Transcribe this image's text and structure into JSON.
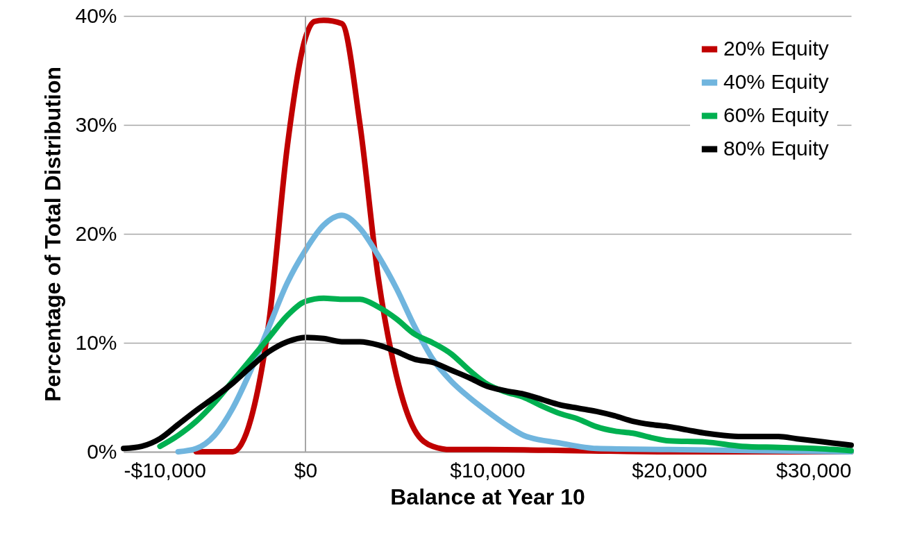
{
  "chart_data": {
    "type": "line",
    "xlabel": "Balance at Year 10",
    "ylabel": "Percentage of Total Distribution",
    "xlim": [
      -10000,
      30000
    ],
    "ylim": [
      0,
      40
    ],
    "xticks": [
      {
        "value": -10000,
        "label": "-$10,000"
      },
      {
        "value": 0,
        "label": "$0"
      },
      {
        "value": 10000,
        "label": "$10,000"
      },
      {
        "value": 20000,
        "label": "$20,000"
      },
      {
        "value": 30000,
        "label": "$30,000"
      }
    ],
    "yticks": [
      {
        "value": 0,
        "label": "0%"
      },
      {
        "value": 10,
        "label": "10%"
      },
      {
        "value": 20,
        "label": "20%"
      },
      {
        "value": 30,
        "label": "30%"
      },
      {
        "value": 40,
        "label": "40%"
      }
    ],
    "grid": "y",
    "legend": "top right",
    "marker": "none",
    "line_style": "solid",
    "ref_lines": [
      {
        "axis": "x",
        "value": 0,
        "color": "#a6a6a6"
      }
    ],
    "series": [
      {
        "name": "20% Equity",
        "color": "#c00000",
        "x": [
          -6000,
          -4000,
          -3000,
          -2000,
          -1000,
          0,
          500,
          1000,
          2000,
          3000,
          4000,
          5000,
          6000,
          7000,
          8000,
          10000,
          15000,
          20000,
          30000
        ],
        "values": [
          0,
          0,
          3,
          12,
          28,
          38,
          39.5,
          39.6,
          39.3,
          30,
          16,
          7,
          2,
          0.5,
          0.2,
          0.2,
          0.1,
          0,
          0
        ]
      },
      {
        "name": "40% Equity",
        "color": "#70b5de",
        "x": [
          -7000,
          -6000,
          -5000,
          -4000,
          -3000,
          -2000,
          -1000,
          0,
          1000,
          2000,
          3000,
          4000,
          5000,
          6000,
          7000,
          8000,
          9000,
          10000,
          11000,
          12000,
          14000,
          16000,
          20000,
          25000,
          30000
        ],
        "values": [
          0,
          0.3,
          1.5,
          4,
          7.5,
          11.5,
          15.5,
          18.5,
          20.8,
          21.7,
          20.5,
          18,
          15,
          11.5,
          8.5,
          6.5,
          5,
          3.7,
          2.5,
          1.5,
          0.8,
          0.3,
          0.2,
          0.1,
          0
        ]
      },
      {
        "name": "60% Equity",
        "color": "#00b050",
        "x": [
          -8000,
          -7000,
          -6000,
          -5000,
          -4000,
          -3000,
          -2000,
          -1000,
          0,
          1000,
          2000,
          3000,
          4000,
          5000,
          6000,
          7000,
          8000,
          9000,
          10000,
          11000,
          12000,
          13000,
          14000,
          15000,
          16000,
          17000,
          18000,
          19000,
          20000,
          22000,
          24000,
          26000,
          28000,
          30000
        ],
        "values": [
          0.5,
          1.5,
          2.8,
          4.5,
          6.5,
          8.5,
          10.5,
          12.5,
          13.8,
          14.1,
          14,
          14,
          13.3,
          12.2,
          10.8,
          10,
          9,
          7.5,
          6.2,
          5.5,
          5,
          4.2,
          3.5,
          3,
          2.3,
          1.9,
          1.7,
          1.3,
          1,
          0.9,
          0.5,
          0.4,
          0.3,
          0.1
        ]
      },
      {
        "name": "80% Equity",
        "color": "#000000",
        "x": [
          -10000,
          -9000,
          -8000,
          -7000,
          -6000,
          -5000,
          -4000,
          -3000,
          -2000,
          -1000,
          0,
          1000,
          2000,
          3000,
          4000,
          5000,
          6000,
          7000,
          8000,
          9000,
          10000,
          11000,
          12000,
          13000,
          14000,
          15000,
          16000,
          17000,
          18000,
          19000,
          20000,
          21000,
          22000,
          23000,
          24000,
          25000,
          26000,
          27000,
          28000,
          29000,
          30000
        ],
        "values": [
          0.3,
          0.5,
          1.2,
          2.5,
          3.8,
          5,
          6.3,
          7.8,
          9.2,
          10.1,
          10.5,
          10.4,
          10.1,
          10.1,
          9.8,
          9.2,
          8.5,
          8.2,
          7.5,
          6.8,
          6,
          5.6,
          5.3,
          4.8,
          4.3,
          4,
          3.7,
          3.3,
          2.8,
          2.5,
          2.3,
          2,
          1.7,
          1.5,
          1.4,
          1.4,
          1.4,
          1.2,
          1,
          0.8,
          0.6
        ]
      }
    ]
  }
}
